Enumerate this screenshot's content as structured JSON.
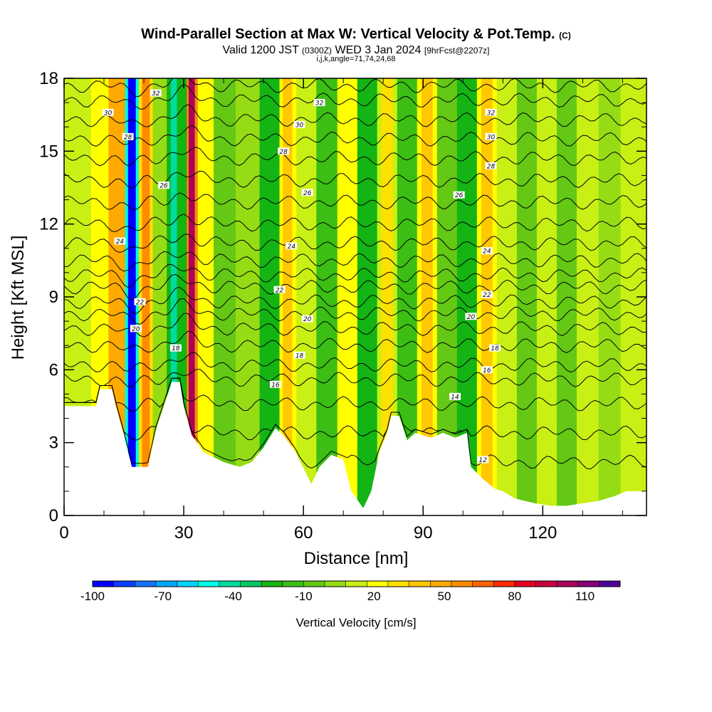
{
  "header": {
    "title": "Wind-Parallel Section at Max W: Vertical Velocity & Pot.Temp.",
    "copyright": "(C)",
    "valid_prefix": "Valid 1200 JST",
    "valid_utc": "(0300Z)",
    "valid_date": "WED 3 Jan 2024",
    "forecast": "[9hrFcst@2207z]",
    "params": "i,j,k,angle=71,74,24,68"
  },
  "chart_data": {
    "type": "heatmap",
    "xlabel": "Distance [nm]",
    "ylabel": "Height [Kft MSL]",
    "xlim": [
      0,
      146
    ],
    "ylim": [
      0,
      18
    ],
    "x_ticks": [
      0,
      30,
      60,
      90,
      120
    ],
    "y_ticks": [
      0,
      3,
      6,
      9,
      12,
      15,
      18
    ],
    "colorbar": {
      "label": "Vertical Velocity [cm/s]",
      "range": [
        -100,
        125
      ],
      "tick_values": [
        -100,
        -70,
        -40,
        -10,
        20,
        50,
        80,
        110
      ],
      "tick_labels": [
        "-100",
        "-70",
        "-40",
        "-10",
        "20",
        "50",
        "80",
        "110"
      ],
      "colors": [
        "#0000ff",
        "#0a3dff",
        "#1673ff",
        "#00a8ff",
        "#00d4ff",
        "#00ffe6",
        "#00dca0",
        "#00c864",
        "#14b414",
        "#3cbe14",
        "#64c814",
        "#96dc14",
        "#c8f014",
        "#ffff00",
        "#ffe100",
        "#ffc800",
        "#ffaa00",
        "#ff8c00",
        "#ff6400",
        "#ff2800",
        "#e6001e",
        "#c8003c",
        "#aa005a",
        "#820078",
        "#500096"
      ]
    },
    "velocity_bands": [
      {
        "x": 13.5,
        "w": 45
      },
      {
        "x": 17,
        "w": -95
      },
      {
        "x": 20.5,
        "w": 55
      },
      {
        "x": 24,
        "w": 5
      },
      {
        "x": 27.5,
        "w": -45
      },
      {
        "x": 29.5,
        "w": -25
      },
      {
        "x": 32,
        "w": 100
      },
      {
        "x": 35,
        "w": 20
      },
      {
        "x": 40,
        "w": -10
      },
      {
        "x": 46,
        "w": 0
      },
      {
        "x": 52,
        "w": -20
      },
      {
        "x": 56,
        "w": 40
      },
      {
        "x": 60.5,
        "w": 15
      },
      {
        "x": 66,
        "w": -15
      },
      {
        "x": 71,
        "w": 20
      },
      {
        "x": 76,
        "w": -20
      },
      {
        "x": 81,
        "w": 30
      },
      {
        "x": 86,
        "w": -15
      },
      {
        "x": 91,
        "w": 40
      },
      {
        "x": 96,
        "w": -5
      },
      {
        "x": 101,
        "w": -20
      },
      {
        "x": 106,
        "w": 35
      },
      {
        "x": 111,
        "w": 10
      },
      {
        "x": 116,
        "w": -5
      },
      {
        "x": 121,
        "w": 10
      },
      {
        "x": 126,
        "w": -10
      },
      {
        "x": 131,
        "w": 10
      },
      {
        "x": 137,
        "w": 0
      },
      {
        "x": 142,
        "w": 10
      }
    ],
    "terrain": [
      [
        0,
        4.5
      ],
      [
        8,
        4.5
      ],
      [
        9,
        5.2
      ],
      [
        12,
        5.2
      ],
      [
        13,
        4.5
      ],
      [
        15,
        3.3
      ],
      [
        17,
        2.0
      ],
      [
        21,
        2.0
      ],
      [
        23,
        3.5
      ],
      [
        25,
        4.5
      ],
      [
        27,
        5.5
      ],
      [
        29,
        5.5
      ],
      [
        30,
        4.5
      ],
      [
        32,
        3.3
      ],
      [
        35,
        2.6
      ],
      [
        40,
        2.2
      ],
      [
        44,
        2.0
      ],
      [
        47,
        2.2
      ],
      [
        50,
        2.8
      ],
      [
        53,
        3.6
      ],
      [
        55,
        3.3
      ],
      [
        58,
        2.6
      ],
      [
        62,
        1.3
      ],
      [
        64,
        2.0
      ],
      [
        67,
        2.5
      ],
      [
        70,
        2.3
      ],
      [
        72,
        1.0
      ],
      [
        75,
        0.3
      ],
      [
        77,
        1.0
      ],
      [
        79,
        2.6
      ],
      [
        81,
        3.4
      ],
      [
        82,
        4.1
      ],
      [
        84,
        4.1
      ],
      [
        86,
        3.1
      ],
      [
        88,
        3.4
      ],
      [
        92,
        3.2
      ],
      [
        95,
        3.4
      ],
      [
        98,
        3.2
      ],
      [
        101,
        3.4
      ],
      [
        102,
        2.0
      ],
      [
        105,
        1.5
      ],
      [
        108,
        1.1
      ],
      [
        110,
        1.0
      ],
      [
        113,
        0.7
      ],
      [
        118,
        0.5
      ],
      [
        122,
        0.4
      ],
      [
        126,
        0.4
      ],
      [
        130,
        0.5
      ],
      [
        134,
        0.6
      ],
      [
        138,
        0.8
      ],
      [
        141,
        1.0
      ],
      [
        146,
        1.0
      ]
    ],
    "isentropes": [
      {
        "level": 12,
        "height": 2.2
      },
      {
        "level": 13,
        "height": 3.4
      },
      {
        "level": 14,
        "height": 4.6
      },
      {
        "level": 15,
        "height": 5.6
      },
      {
        "level": 16,
        "height": 6.2
      },
      {
        "level": 17,
        "height": 7.0
      },
      {
        "level": 18,
        "height": 7.7
      },
      {
        "level": 19,
        "height": 8.3
      },
      {
        "level": 20,
        "height": 8.8
      },
      {
        "level": 21,
        "height": 9.4
      },
      {
        "level": 22,
        "height": 9.9
      },
      {
        "level": 23,
        "height": 10.5
      },
      {
        "level": 24,
        "height": 11.2
      },
      {
        "level": 25,
        "height": 12.0
      },
      {
        "level": 26,
        "height": 12.9
      },
      {
        "level": 27,
        "height": 13.8
      },
      {
        "level": 28,
        "height": 14.7
      },
      {
        "level": 29,
        "height": 15.5
      },
      {
        "level": 30,
        "height": 16.3
      },
      {
        "level": 31,
        "height": 17.1
      },
      {
        "level": 32,
        "height": 17.7
      }
    ],
    "isentrope_labels": [
      {
        "x": 23,
        "y": 17.4,
        "text": "32"
      },
      {
        "x": 11,
        "y": 16.6,
        "text": "30"
      },
      {
        "x": 16,
        "y": 15.6,
        "text": "28"
      },
      {
        "x": 25,
        "y": 13.6,
        "text": "26"
      },
      {
        "x": 14,
        "y": 11.3,
        "text": "24"
      },
      {
        "x": 19,
        "y": 8.8,
        "text": "22"
      },
      {
        "x": 18,
        "y": 7.7,
        "text": "20"
      },
      {
        "x": 28,
        "y": 6.9,
        "text": "18"
      },
      {
        "x": 64,
        "y": 17.0,
        "text": "32"
      },
      {
        "x": 59,
        "y": 16.1,
        "text": "30"
      },
      {
        "x": 55,
        "y": 15.0,
        "text": "28"
      },
      {
        "x": 61,
        "y": 13.3,
        "text": "26"
      },
      {
        "x": 57,
        "y": 11.1,
        "text": "24"
      },
      {
        "x": 54,
        "y": 9.3,
        "text": "22"
      },
      {
        "x": 61,
        "y": 8.1,
        "text": "20"
      },
      {
        "x": 59,
        "y": 6.6,
        "text": "18"
      },
      {
        "x": 53,
        "y": 5.4,
        "text": "16"
      },
      {
        "x": 107,
        "y": 16.6,
        "text": "32"
      },
      {
        "x": 107,
        "y": 15.6,
        "text": "30"
      },
      {
        "x": 107,
        "y": 14.4,
        "text": "28"
      },
      {
        "x": 99,
        "y": 13.2,
        "text": "26"
      },
      {
        "x": 106,
        "y": 10.9,
        "text": "24"
      },
      {
        "x": 106,
        "y": 9.1,
        "text": "22"
      },
      {
        "x": 102,
        "y": 8.2,
        "text": "20"
      },
      {
        "x": 108,
        "y": 6.9,
        "text": "18"
      },
      {
        "x": 106,
        "y": 6.0,
        "text": "16"
      },
      {
        "x": 98,
        "y": 4.9,
        "text": "14"
      },
      {
        "x": 105,
        "y": 2.3,
        "text": "12"
      }
    ]
  }
}
